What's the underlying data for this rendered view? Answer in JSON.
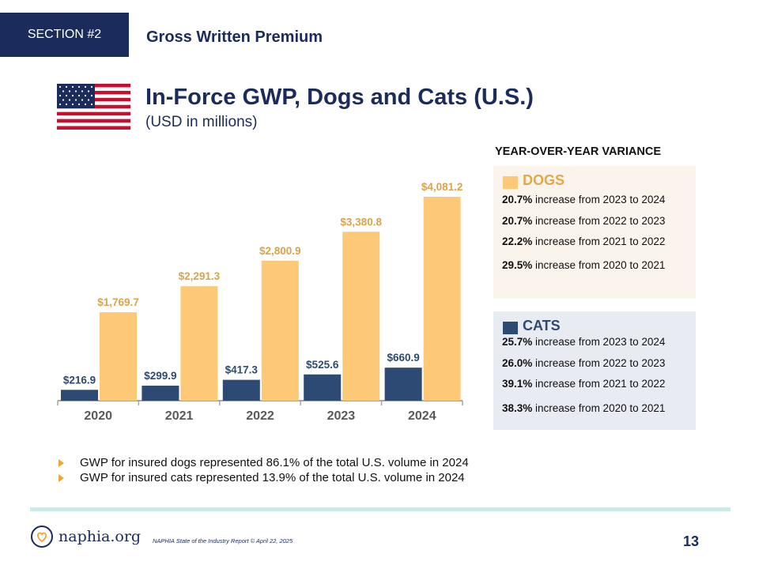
{
  "header": {
    "section_label": "SECTION #2",
    "section_title": "Gross Written Premium"
  },
  "title": {
    "main": "In-Force GWP, Dogs and Cats (U.S.)",
    "sub": "(USD in millions)"
  },
  "chart_data": {
    "type": "bar",
    "categories": [
      "2020",
      "2021",
      "2022",
      "2023",
      "2024"
    ],
    "series": [
      {
        "name": "CATS",
        "color": "#2c4a73",
        "values": [
          216.9,
          299.9,
          417.3,
          525.6,
          660.9
        ],
        "labels": [
          "$216.9",
          "$299.9",
          "$417.3",
          "$525.6",
          "$660.9"
        ],
        "label_color": "#2c4a73"
      },
      {
        "name": "DOGS",
        "color": "#fdc976",
        "values": [
          1769.7,
          2291.3,
          2800.9,
          3380.8,
          4081.2
        ],
        "labels": [
          "$1,769.7",
          "$2,291.3",
          "$2,800.9",
          "$3,380.8",
          "$4,081.2"
        ],
        "label_color": "#d9a34b"
      }
    ],
    "ylim": [
      0,
      4350
    ],
    "grid": false,
    "axis_color": "#a6a6a6"
  },
  "variance": {
    "heading": "YEAR-OVER-YEAR VARIANCE",
    "dogs": {
      "label": "DOGS",
      "color": "#fdc976",
      "lines": [
        {
          "pct": "20.7%",
          "text": " increase from 2023 to 2024"
        },
        {
          "pct": "20.7%",
          "text": " increase from 2022 to 2023"
        },
        {
          "pct": "22.2%",
          "text": " increase from 2021 to 2022"
        },
        {
          "pct": "29.5%",
          "text": " increase from 2020 to 2021"
        }
      ]
    },
    "cats": {
      "label": "CATS",
      "color": "#2c4a73",
      "lines": [
        {
          "pct": "25.7%",
          "text": " increase from 2023 to 2024"
        },
        {
          "pct": "26.0%",
          "text": " increase from 2022 to 2023"
        },
        {
          "pct": "39.1%",
          "text": " increase from 2021 to 2022"
        },
        {
          "pct": "38.3%",
          "text": " increase from 2020 to 2021"
        }
      ]
    }
  },
  "bullets": [
    "GWP for insured dogs represented 86.1% of the total U.S. volume in 2024",
    "GWP for insured cats represented 13.9% of the total U.S. volume in 2024"
  ],
  "footer": {
    "logo_text": "naphia.org",
    "note": "NAPHIA State of the Industry Report © April 22, 2025",
    "page_number": "13"
  }
}
